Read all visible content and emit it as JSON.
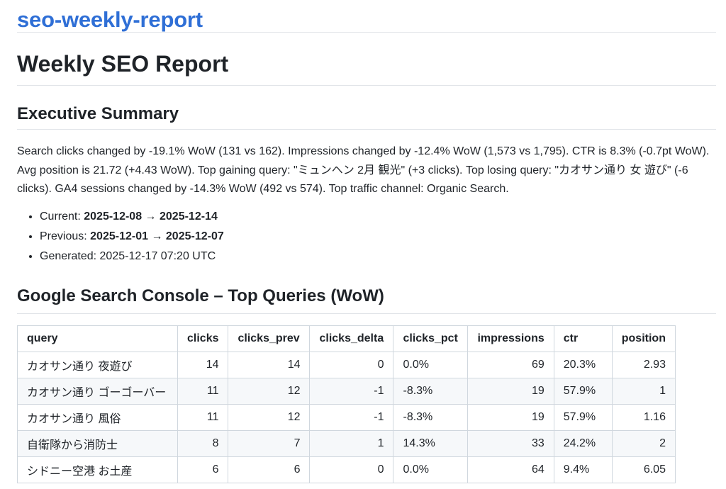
{
  "site": {
    "title": "seo-weekly-report"
  },
  "report": {
    "title": "Weekly SEO Report",
    "summary_heading": "Executive Summary",
    "summary_text": "Search clicks changed by -19.1% WoW (131 vs 162). Impressions changed by -12.4% WoW (1,573 vs 1,795). CTR is 8.3% (-0.7pt WoW). Avg position is 21.72 (+4.43 WoW). Top gaining query: \"ミュンヘン 2月 観光\" (+3 clicks). Top losing query: \"カオサン通り 女 遊び\" (-6 clicks). GA4 sessions changed by -14.3% WoW (492 vs 574). Top traffic channel: Organic Search.",
    "periods": {
      "current_label": "Current:",
      "current_start": "2025-12-08",
      "current_end": "2025-12-14",
      "previous_label": "Previous:",
      "previous_start": "2025-12-01",
      "previous_end": "2025-12-07",
      "arrow": "→",
      "generated_label": "Generated:",
      "generated_value": "2025-12-17 07:20 UTC"
    }
  },
  "gsc": {
    "heading": "Google Search Console – Top Queries (WoW)",
    "columns": [
      "query",
      "clicks",
      "clicks_prev",
      "clicks_delta",
      "clicks_pct",
      "impressions",
      "ctr",
      "position"
    ],
    "rows": [
      [
        "カオサン通り 夜遊び",
        "14",
        "14",
        "0",
        "0.0%",
        "69",
        "20.3%",
        "2.93"
      ],
      [
        "カオサン通り ゴーゴーバー",
        "11",
        "12",
        "-1",
        "-8.3%",
        "19",
        "57.9%",
        "1"
      ],
      [
        "カオサン通り 風俗",
        "11",
        "12",
        "-1",
        "-8.3%",
        "19",
        "57.9%",
        "1.16"
      ],
      [
        "自衛隊から消防士",
        "8",
        "7",
        "1",
        "14.3%",
        "33",
        "24.2%",
        "2"
      ],
      [
        "シドニー空港 お土産",
        "6",
        "6",
        "0",
        "0.0%",
        "64",
        "9.4%",
        "6.05"
      ]
    ]
  }
}
